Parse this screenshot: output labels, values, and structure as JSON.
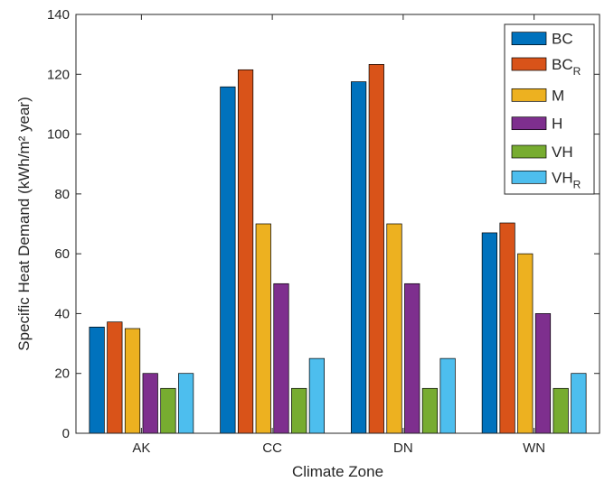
{
  "chart_data": {
    "type": "bar",
    "xlabel": "Climate Zone",
    "ylabel": "Specific Heat Demand (kWh/m² year)",
    "ylim": [
      0,
      140
    ],
    "yticks": [
      0,
      20,
      40,
      60,
      80,
      100,
      120,
      140
    ],
    "categories": [
      "AK",
      "CC",
      "DN",
      "WN"
    ],
    "legend_position": "top-right",
    "grid": false,
    "series": [
      {
        "name": "BC",
        "name_main": "BC",
        "name_sub": "",
        "color": "#0072BD",
        "values": [
          35.5,
          115.8,
          117.5,
          67
        ]
      },
      {
        "name": "BC_R",
        "name_main": "BC",
        "name_sub": "R",
        "color": "#D95319",
        "values": [
          37.2,
          121.5,
          123.3,
          70.3
        ]
      },
      {
        "name": "M",
        "name_main": "M",
        "name_sub": "",
        "color": "#EDB120",
        "values": [
          35,
          70,
          70,
          60
        ]
      },
      {
        "name": "H",
        "name_main": "H",
        "name_sub": "",
        "color": "#7E2F8E",
        "values": [
          20,
          50,
          50,
          40
        ]
      },
      {
        "name": "VH",
        "name_main": "VH",
        "name_sub": "",
        "color": "#77AC30",
        "values": [
          15,
          15,
          15,
          15
        ]
      },
      {
        "name": "VH_R",
        "name_main": "VH",
        "name_sub": "R",
        "color": "#4DBEEE",
        "values": [
          20,
          25,
          25,
          20
        ]
      }
    ]
  }
}
